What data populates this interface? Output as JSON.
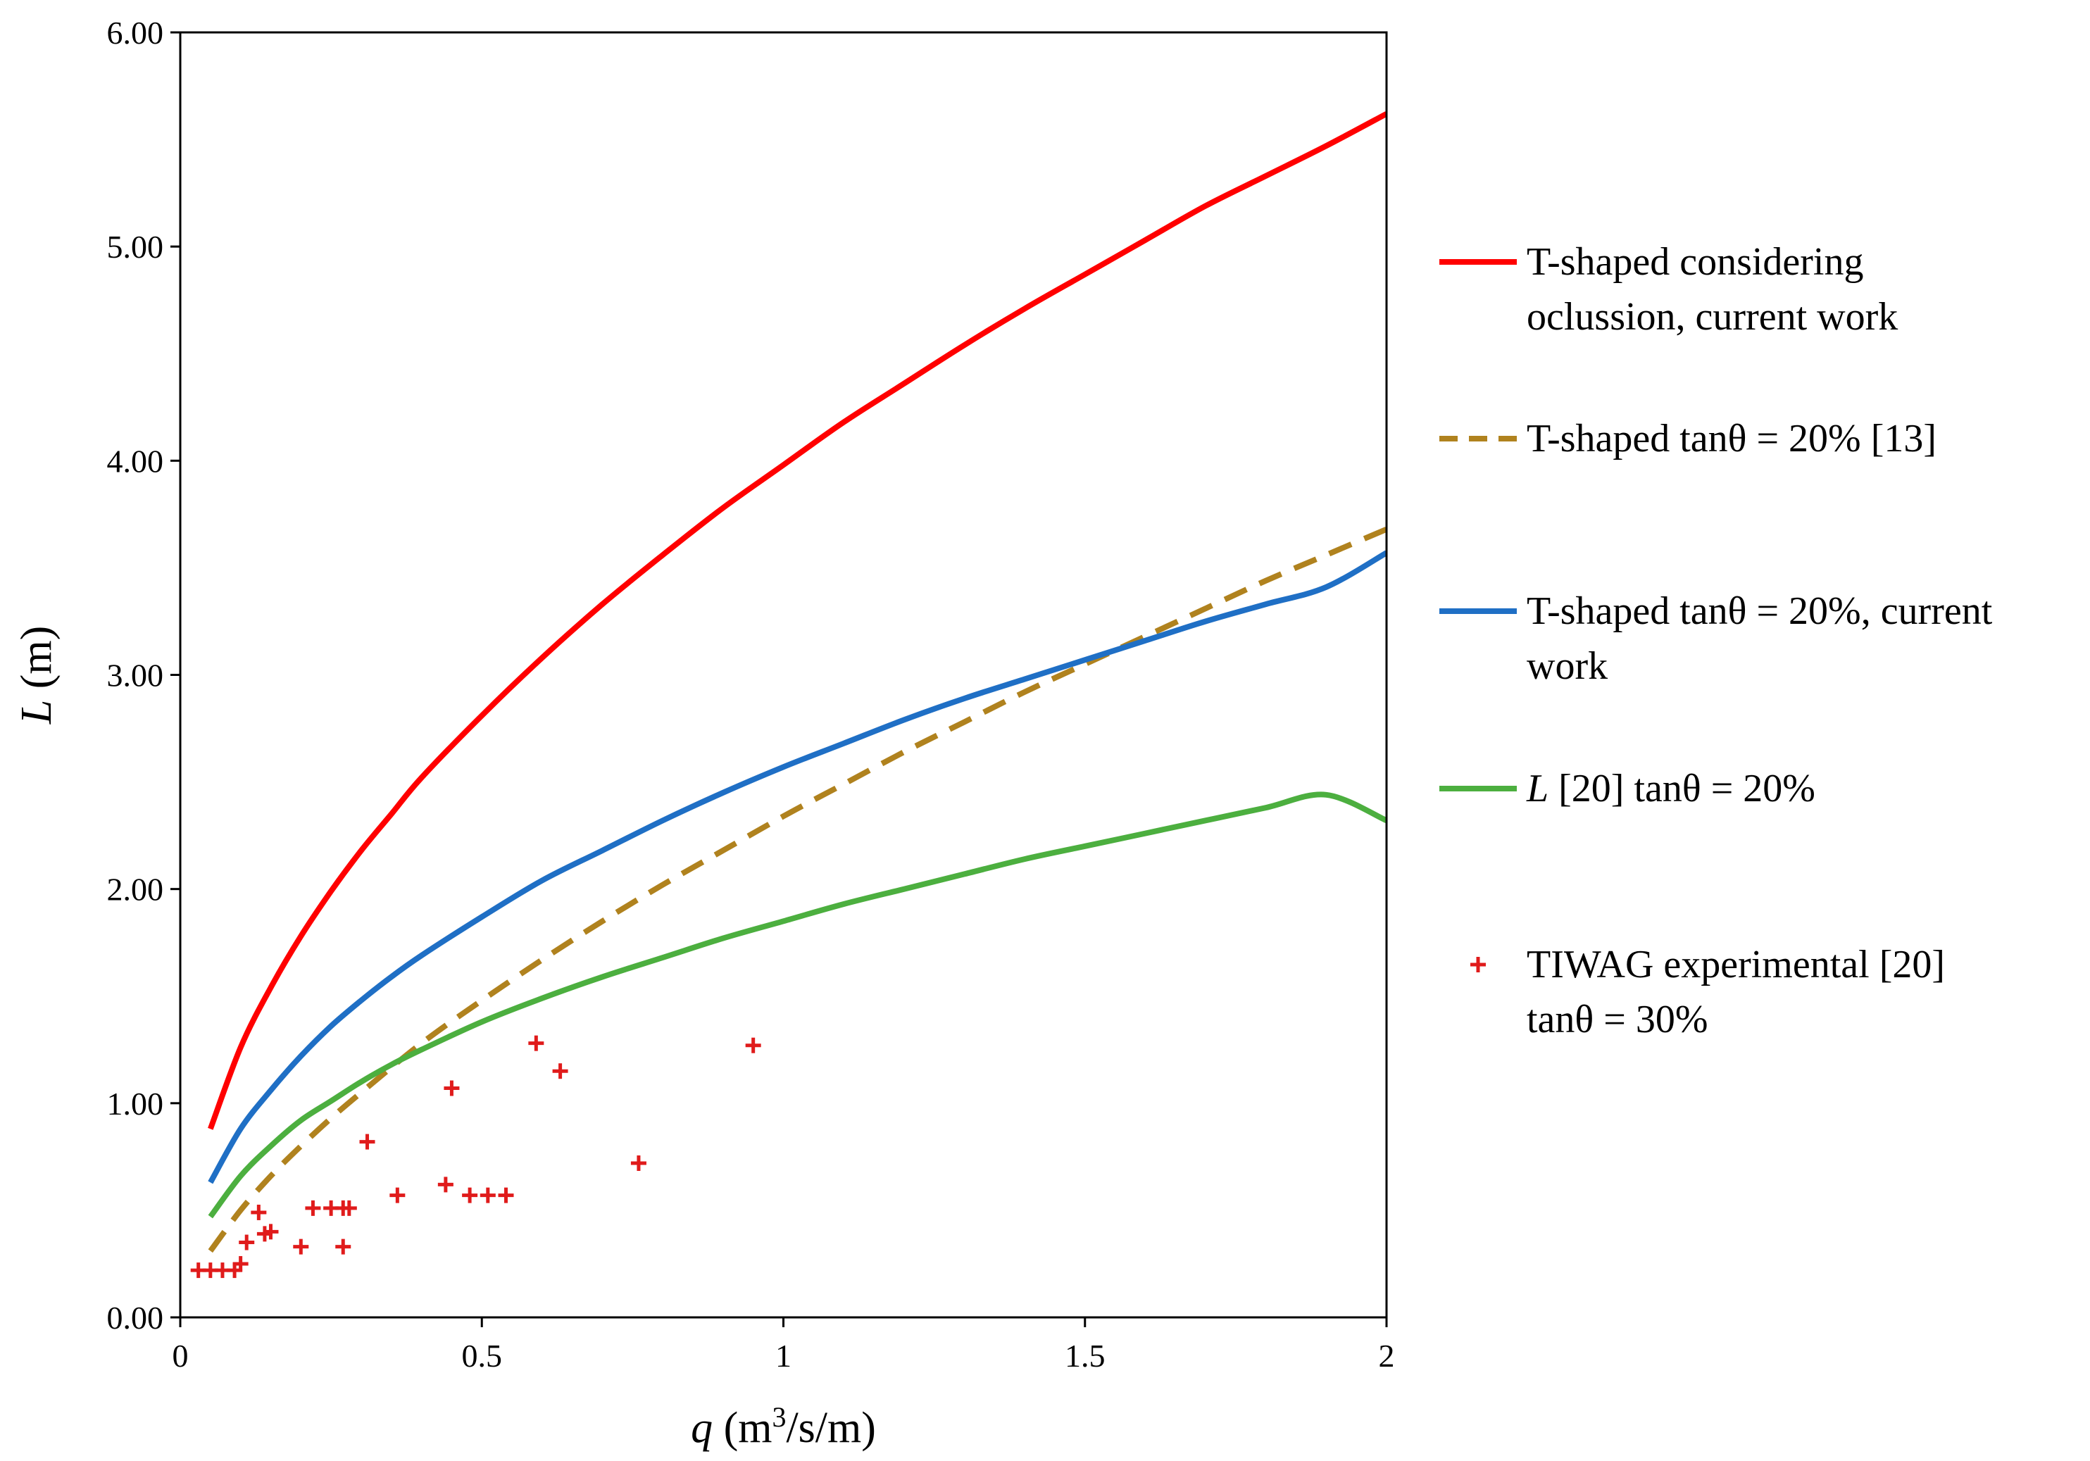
{
  "chart_data": {
    "type": "line",
    "title": "",
    "xlabel": {
      "var": "q",
      "rest": " (m",
      "sup": "3",
      "unit_tail": "/s/m)"
    },
    "ylabel": {
      "var": "L",
      "rest": " (m)"
    },
    "xlim": [
      0,
      2
    ],
    "ylim": [
      0,
      6
    ],
    "x_ticks": [
      0,
      0.5,
      1,
      1.5,
      2
    ],
    "x_tick_labels": [
      "0",
      "0.5",
      "1",
      "1.5",
      "2"
    ],
    "y_ticks": [
      0,
      1,
      2,
      3,
      4,
      5,
      6
    ],
    "y_tick_labels": [
      "0.00",
      "1.00",
      "2.00",
      "3.00",
      "4.00",
      "5.00",
      "6.00"
    ],
    "grid": false,
    "legend_position": "right",
    "series": [
      {
        "name": "T-shaped considering oclussion, current work",
        "legend_lines": [
          "T-shaped considering",
          "oclussion, current work"
        ],
        "legend_italic_prefix": "",
        "color": "#ff0000",
        "style": "solid",
        "kind": "line",
        "x": [
          0.05,
          0.1,
          0.15,
          0.2,
          0.25,
          0.3,
          0.35,
          0.4,
          0.5,
          0.6,
          0.7,
          0.8,
          0.9,
          1.0,
          1.1,
          1.2,
          1.3,
          1.4,
          1.5,
          1.6,
          1.7,
          1.8,
          1.9,
          2.0
        ],
        "y": [
          0.88,
          1.26,
          1.54,
          1.78,
          1.99,
          2.18,
          2.35,
          2.52,
          2.81,
          3.08,
          3.33,
          3.56,
          3.78,
          3.98,
          4.18,
          4.36,
          4.54,
          4.71,
          4.87,
          5.03,
          5.19,
          5.33,
          5.47,
          5.62
        ]
      },
      {
        "name": "T-shaped  tanθ = 20% [13]",
        "legend_lines": [
          "T-shaped  tanθ = 20% [13]"
        ],
        "legend_italic_prefix": "",
        "color": "#b0821e",
        "style": "dashed",
        "kind": "line",
        "x": [
          0.05,
          0.1,
          0.15,
          0.2,
          0.25,
          0.3,
          0.4,
          0.5,
          0.6,
          0.7,
          0.8,
          0.9,
          1.0,
          1.1,
          1.2,
          1.3,
          1.4,
          1.5,
          1.6,
          1.7,
          1.8,
          1.9,
          2.0
        ],
        "y": [
          0.31,
          0.5,
          0.66,
          0.8,
          0.93,
          1.05,
          1.28,
          1.48,
          1.67,
          1.85,
          2.02,
          2.18,
          2.34,
          2.49,
          2.64,
          2.78,
          2.92,
          3.05,
          3.18,
          3.31,
          3.44,
          3.56,
          3.68
        ]
      },
      {
        "name": "T-shaped  tanθ = 20%, current work",
        "legend_lines": [
          "T-shaped  tanθ = 20%, current",
          "work"
        ],
        "legend_italic_prefix": "",
        "color": "#1f6fc5",
        "style": "solid",
        "kind": "line",
        "x": [
          0.05,
          0.1,
          0.15,
          0.2,
          0.25,
          0.3,
          0.35,
          0.4,
          0.5,
          0.6,
          0.7,
          0.8,
          0.9,
          1.0,
          1.1,
          1.2,
          1.3,
          1.4,
          1.5,
          1.6,
          1.7,
          1.8,
          1.9,
          2.0
        ],
        "y": [
          0.63,
          0.88,
          1.06,
          1.22,
          1.36,
          1.48,
          1.59,
          1.69,
          1.87,
          2.04,
          2.18,
          2.32,
          2.45,
          2.57,
          2.68,
          2.79,
          2.89,
          2.98,
          3.07,
          3.16,
          3.25,
          3.33,
          3.41,
          3.57
        ]
      },
      {
        "name": "L [20] tanθ = 20%",
        "legend_lines": [
          " [20] tanθ = 20%"
        ],
        "legend_italic_prefix": "L",
        "color": "#4caf3f",
        "style": "solid",
        "kind": "line",
        "x": [
          0.05,
          0.1,
          0.15,
          0.2,
          0.25,
          0.3,
          0.35,
          0.4,
          0.5,
          0.6,
          0.7,
          0.8,
          0.9,
          1.0,
          1.1,
          1.2,
          1.3,
          1.4,
          1.5,
          1.6,
          1.7,
          1.8,
          1.9,
          2.0
        ],
        "y": [
          0.47,
          0.66,
          0.8,
          0.92,
          1.01,
          1.1,
          1.18,
          1.25,
          1.38,
          1.49,
          1.59,
          1.68,
          1.77,
          1.85,
          1.93,
          2.0,
          2.07,
          2.14,
          2.2,
          2.26,
          2.32,
          2.38,
          2.44,
          2.32
        ]
      },
      {
        "name": "TIWAG experimental [20] tanθ = 30%",
        "legend_lines": [
          "TIWAG  experimental  [20]",
          "tanθ = 30%"
        ],
        "legend_italic_prefix": "",
        "color": "#e01b1b",
        "style": "marker",
        "kind": "scatter",
        "marker": "+",
        "x": [
          0.03,
          0.05,
          0.07,
          0.09,
          0.1,
          0.11,
          0.13,
          0.14,
          0.15,
          0.2,
          0.22,
          0.25,
          0.27,
          0.27,
          0.28,
          0.31,
          0.36,
          0.44,
          0.45,
          0.48,
          0.51,
          0.54,
          0.59,
          0.63,
          0.76,
          0.95
        ],
        "y": [
          0.22,
          0.22,
          0.22,
          0.22,
          0.25,
          0.35,
          0.49,
          0.39,
          0.4,
          0.33,
          0.51,
          0.51,
          0.51,
          0.33,
          0.51,
          0.82,
          0.57,
          0.62,
          1.07,
          0.57,
          0.57,
          0.57,
          1.28,
          1.15,
          0.72,
          1.27
        ]
      }
    ]
  }
}
